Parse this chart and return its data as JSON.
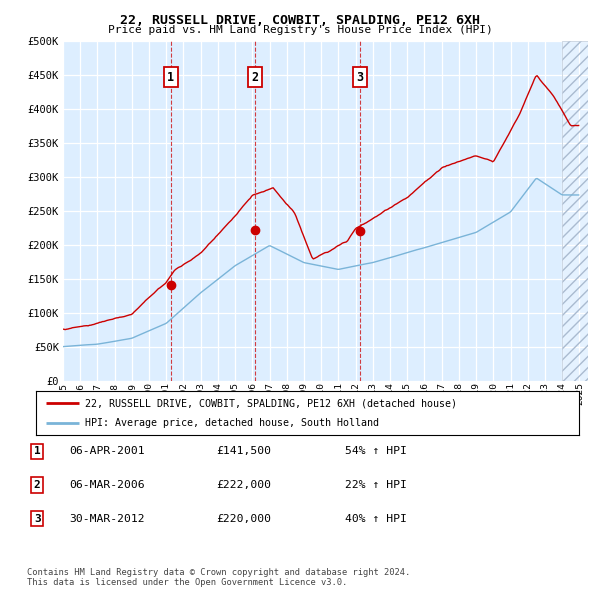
{
  "title": "22, RUSSELL DRIVE, COWBIT, SPALDING, PE12 6XH",
  "subtitle": "Price paid vs. HM Land Registry's House Price Index (HPI)",
  "ylim": [
    0,
    500000
  ],
  "yticks": [
    0,
    50000,
    100000,
    150000,
    200000,
    250000,
    300000,
    350000,
    400000,
    450000,
    500000
  ],
  "ytick_labels": [
    "£0",
    "£50K",
    "£100K",
    "£150K",
    "£200K",
    "£250K",
    "£300K",
    "£350K",
    "£400K",
    "£450K",
    "£500K"
  ],
  "hpi_color": "#7ab4d8",
  "price_color": "#cc0000",
  "sale_years": [
    2001.27,
    2006.17,
    2012.25
  ],
  "sale_prices": [
    141500,
    222000,
    220000
  ],
  "sale_labels": [
    "1",
    "2",
    "3"
  ],
  "legend_price_label": "22, RUSSELL DRIVE, COWBIT, SPALDING, PE12 6XH (detached house)",
  "legend_hpi_label": "HPI: Average price, detached house, South Holland",
  "table_rows": [
    [
      "1",
      "06-APR-2001",
      "£141,500",
      "54% ↑ HPI"
    ],
    [
      "2",
      "06-MAR-2006",
      "£222,000",
      "22% ↑ HPI"
    ],
    [
      "3",
      "30-MAR-2012",
      "£220,000",
      "40% ↑ HPI"
    ]
  ],
  "footer": "Contains HM Land Registry data © Crown copyright and database right 2024.\nThis data is licensed under the Open Government Licence v3.0.",
  "xmin_year": 1995.0,
  "xmax_year": 2025.5,
  "hatch_start": 2024.0,
  "xtick_years": [
    1995,
    1996,
    1997,
    1998,
    1999,
    2000,
    2001,
    2002,
    2003,
    2004,
    2005,
    2006,
    2007,
    2008,
    2009,
    2010,
    2011,
    2012,
    2013,
    2014,
    2015,
    2016,
    2017,
    2018,
    2019,
    2020,
    2021,
    2022,
    2023,
    2024,
    2025
  ],
  "plot_bg": "#ddeeff",
  "seed_hpi": 7,
  "seed_price": 13
}
